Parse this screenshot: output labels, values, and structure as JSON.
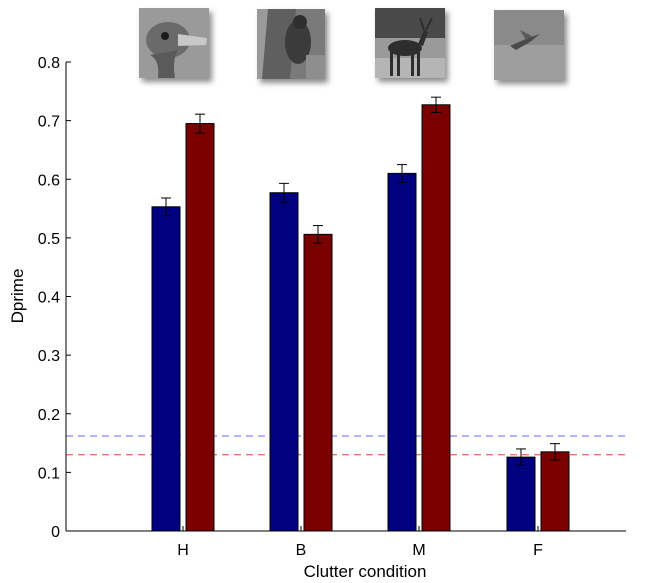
{
  "chart_data": {
    "type": "bar",
    "xlabel": "Clutter condition",
    "ylabel": "Dprime",
    "categories": [
      "H",
      "B",
      "M",
      "F"
    ],
    "ylim": [
      0,
      0.8
    ],
    "yticks": [
      "0",
      "0.1",
      "0.2",
      "0.3",
      "0.4",
      "0.5",
      "0.6",
      "0.7",
      "0.8"
    ],
    "series": [
      {
        "color": "#000080",
        "values": [
          0.553,
          0.577,
          0.61,
          0.126
        ],
        "errors": [
          0.015,
          0.016,
          0.015,
          0.014
        ]
      },
      {
        "color": "#7a0000",
        "values": [
          0.695,
          0.506,
          0.727,
          0.135
        ],
        "errors": [
          0.016,
          0.015,
          0.013,
          0.014
        ]
      }
    ],
    "reference_lines": [
      {
        "value": 0.162,
        "color": "#6a6aff",
        "style": "dashed"
      },
      {
        "value": 0.13,
        "color": "#e04040",
        "style": "dashed"
      }
    ],
    "category_thumbnails": [
      "ostrich-head-photo",
      "animal-on-tree-photo",
      "deer-in-field-photo",
      "bird-in-sky-photo"
    ]
  }
}
